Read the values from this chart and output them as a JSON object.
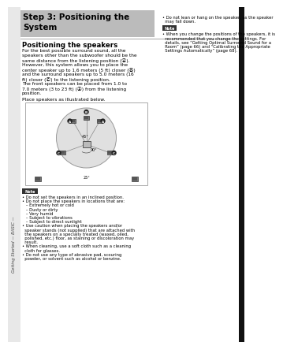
{
  "page_bg": "#ffffff",
  "sidebar_bg": "#e8e8e8",
  "header_bg": "#bbbbbb",
  "header_text": "Step 3: Positioning the\nSystem",
  "section_title": "Positioning the speakers",
  "body_lines": [
    "For the best possible surround sound, all the",
    "speakers other than the subwoofer should be the",
    "same distance from the listening position (Ⓐ).",
    "However, this system allows you to place the",
    "center speaker up to 1.6 meters (5 ft) closer (Ⓑ)",
    "and the surround speakers up to 5.0 meters (16",
    "ft) closer (Ⓒ) to the listening position.",
    "The front speakers can be placed from 1.0 to",
    "7.0 meters (3 to 23 ft) (Ⓐ) from the listening",
    "position."
  ],
  "place_text": "Place speakers as illustrated below.",
  "right_bullet1_lines": [
    "• Do not lean or hang on the speaker, as the speaker",
    "  may fall down."
  ],
  "right_note_label": "Note",
  "right_note_lines": [
    "• When you change the positions of the speakers, it is",
    "  recommended that you change the settings. For",
    "  details, see “Getting Optimal Surround Sound for a",
    "  Room” (page 66) and “Calibrating the Appropriate",
    "  Settings Automatically” (page 68)."
  ],
  "bottom_note_label": "Note",
  "bottom_note_lines": [
    "• Do not set the speakers in an inclined position.",
    "• Do not place the speakers in locations that are:",
    "   – Extremely hot or cold",
    "   – Dusty or dirty",
    "   – Very humid",
    "   – Subject to vibrations",
    "   – Subject to direct sunlight",
    "• Use caution when placing the speakers and/or",
    "  speaker stands (not supplied) that are attached with",
    "  the speakers on a specially treated (waxed, oiled,",
    "  polished, etc.) floor, as staining or discoloration may",
    "  result.",
    "• When cleaning, use a soft cloth such as a cleaning",
    "  cloth for glasses.",
    "• Do not use any type of abrasive pad, scouring",
    "  powder, or solvent such as alcohol or benzine."
  ],
  "angle_45": "45°",
  "angle_90": "90°",
  "angle_25": "25°"
}
